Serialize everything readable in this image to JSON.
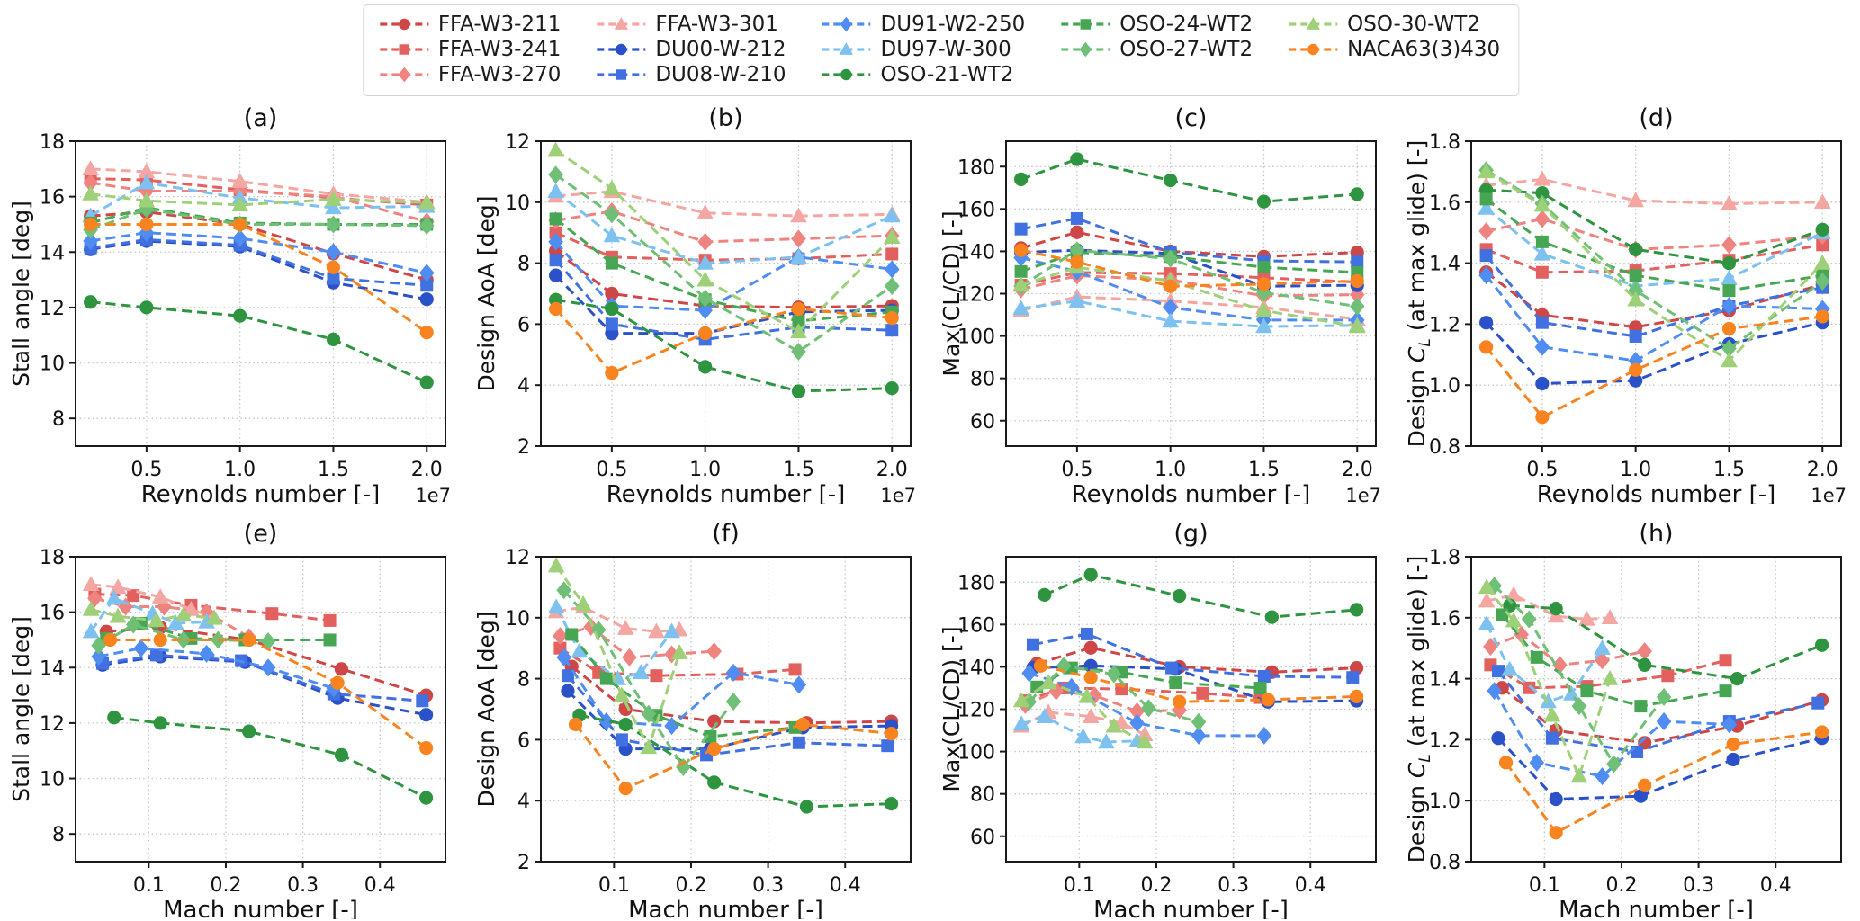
{
  "chart_data": {
    "type": "line",
    "x_re": [
      2000000,
      5000000,
      10000000,
      15000000,
      20000000
    ],
    "airfoils": [
      {
        "name": "FFA-W3-211",
        "color": "#cf4646",
        "marker": "circle",
        "mach": [
          0.045,
          0.115,
          0.23,
          0.35,
          0.46
        ],
        "stall": [
          15.3,
          15.45,
          15.0,
          13.95,
          13.0
        ],
        "aoa": [
          8.4,
          7.0,
          6.6,
          6.55,
          6.6
        ],
        "clcd": [
          141.5,
          149.0,
          140.0,
          137.5,
          139.5
        ],
        "cl": [
          1.37,
          1.23,
          1.19,
          1.245,
          1.33
        ]
      },
      {
        "name": "FFA-W3-241",
        "color": "#e2605d",
        "marker": "square",
        "mach": [
          0.03,
          0.08,
          0.155,
          0.26,
          0.335
        ],
        "stall": [
          16.65,
          16.6,
          16.25,
          15.95,
          15.7
        ],
        "aoa": [
          9.0,
          8.2,
          8.1,
          8.15,
          8.3
        ],
        "clcd": [
          124.0,
          130.0,
          129.5,
          127.5,
          125.5
        ],
        "cl": [
          1.445,
          1.37,
          1.375,
          1.41,
          1.46
        ]
      },
      {
        "name": "FFA-W3-270",
        "color": "#ee837f",
        "marker": "diamond",
        "mach": [
          0.03,
          0.07,
          0.12,
          0.175,
          0.23
        ],
        "stall": [
          16.5,
          16.2,
          16.2,
          16.0,
          15.1
        ],
        "aoa": [
          9.4,
          9.7,
          8.7,
          8.8,
          8.9
        ],
        "clcd": [
          122.0,
          128.5,
          126.5,
          119.0,
          119.5
        ],
        "cl": [
          1.505,
          1.545,
          1.445,
          1.46,
          1.49
        ]
      },
      {
        "name": "FFA-W3-301",
        "color": "#f4a6a3",
        "marker": "triangle",
        "mach": [
          0.025,
          0.06,
          0.115,
          0.155,
          0.185
        ],
        "stall": [
          17.0,
          16.9,
          16.55,
          16.1,
          15.8
        ],
        "aoa": [
          10.2,
          10.35,
          9.65,
          9.55,
          9.6
        ],
        "clcd": [
          112.0,
          118.5,
          116.5,
          113.5,
          108.0
        ],
        "cl": [
          1.655,
          1.675,
          1.605,
          1.595,
          1.6
        ]
      },
      {
        "name": "DU00-W-212",
        "color": "#2b51c8",
        "marker": "circle",
        "mach": [
          0.04,
          0.115,
          0.225,
          0.345,
          0.46
        ],
        "stall": [
          14.1,
          14.4,
          14.2,
          12.9,
          12.3
        ],
        "aoa": [
          7.6,
          5.7,
          5.7,
          6.4,
          6.45
        ],
        "clcd": [
          139.5,
          140.5,
          139.0,
          123.5,
          124.0
        ],
        "cl": [
          1.205,
          1.005,
          1.015,
          1.135,
          1.205
        ]
      },
      {
        "name": "DU08-W-210",
        "color": "#4170e0",
        "marker": "square",
        "mach": [
          0.04,
          0.11,
          0.22,
          0.34,
          0.455
        ],
        "stall": [
          14.15,
          14.45,
          14.25,
          13.05,
          12.8
        ],
        "aoa": [
          8.1,
          6.0,
          5.5,
          5.9,
          5.8
        ],
        "clcd": [
          150.5,
          155.5,
          139.5,
          135.5,
          135.0
        ],
        "cl": [
          1.425,
          1.205,
          1.16,
          1.26,
          1.32
        ]
      },
      {
        "name": "DU91-W2-250",
        "color": "#4f8df2",
        "marker": "diamond",
        "mach": [
          0.035,
          0.09,
          0.175,
          0.255,
          0.34
        ],
        "stall": [
          14.4,
          14.7,
          14.5,
          14.0,
          13.25
        ],
        "aoa": [
          8.7,
          6.6,
          6.45,
          8.2,
          7.8
        ],
        "clcd": [
          137.0,
          130.5,
          113.5,
          107.5,
          107.5
        ],
        "cl": [
          1.36,
          1.125,
          1.08,
          1.26,
          1.25
        ]
      },
      {
        "name": "DU97-W-300",
        "color": "#7cc1f0",
        "marker": "triangle",
        "mach": [
          0.025,
          0.055,
          0.105,
          0.135,
          0.175
        ],
        "stall": [
          15.3,
          16.5,
          15.95,
          15.6,
          15.65
        ],
        "aoa": [
          10.35,
          8.9,
          8.0,
          8.2,
          9.55
        ],
        "clcd": [
          113.0,
          116.5,
          107.0,
          104.5,
          105.0
        ],
        "cl": [
          1.58,
          1.43,
          1.325,
          1.35,
          1.5
        ]
      },
      {
        "name": "OSO-21-WT2",
        "color": "#2e9440",
        "marker": "circle",
        "mach": [
          0.055,
          0.115,
          0.23,
          0.35,
          0.46
        ],
        "stall": [
          12.2,
          12.0,
          11.7,
          10.85,
          9.3
        ],
        "aoa": [
          6.8,
          6.5,
          4.6,
          3.8,
          3.9
        ],
        "clcd": [
          174.0,
          183.5,
          173.5,
          163.5,
          167.0
        ],
        "cl": [
          1.64,
          1.63,
          1.445,
          1.4,
          1.51
        ]
      },
      {
        "name": "OSO-24-WT2",
        "color": "#46a653",
        "marker": "square",
        "mach": [
          0.045,
          0.09,
          0.155,
          0.225,
          0.335
        ],
        "stall": [
          15.05,
          15.6,
          15.05,
          15.0,
          15.0
        ],
        "aoa": [
          9.45,
          8.0,
          6.8,
          6.1,
          6.4
        ],
        "clcd": [
          130.5,
          139.5,
          137.5,
          132.5,
          130.0
        ],
        "cl": [
          1.61,
          1.47,
          1.36,
          1.31,
          1.36
        ]
      },
      {
        "name": "OSO-27-WT2",
        "color": "#6fc076",
        "marker": "diamond",
        "mach": [
          0.035,
          0.08,
          0.145,
          0.19,
          0.255
        ],
        "stall": [
          14.8,
          15.55,
          15.0,
          15.0,
          14.95
        ],
        "aoa": [
          10.9,
          9.6,
          6.85,
          5.1,
          7.25
        ],
        "clcd": [
          123.5,
          140.5,
          136.5,
          120.5,
          114.0
        ],
        "cl": [
          1.705,
          1.595,
          1.31,
          1.12,
          1.34
        ]
      },
      {
        "name": "OSO-30-WT2",
        "color": "#9ed077",
        "marker": "triangle",
        "mach": [
          0.025,
          0.06,
          0.11,
          0.145,
          0.185
        ],
        "stall": [
          16.1,
          15.85,
          15.7,
          15.9,
          15.78
        ],
        "aoa": [
          11.7,
          10.45,
          7.45,
          5.75,
          8.85
        ],
        "clcd": [
          124.0,
          132.5,
          126.0,
          112.0,
          104.5
        ],
        "cl": [
          1.7,
          1.59,
          1.28,
          1.08,
          1.4
        ]
      },
      {
        "name": "NACA63(3)430",
        "color": "#f9841f",
        "marker": "circle",
        "mach": [
          0.05,
          0.115,
          0.23,
          0.345,
          0.46
        ],
        "stall": [
          15.0,
          15.0,
          15.0,
          13.45,
          11.1
        ],
        "aoa": [
          6.5,
          4.4,
          5.7,
          6.5,
          6.2
        ],
        "clcd": [
          140.5,
          135.0,
          123.5,
          124.5,
          126.0
        ],
        "cl": [
          1.125,
          0.895,
          1.05,
          1.185,
          1.225
        ]
      }
    ],
    "subplots": [
      {
        "id": "a",
        "title": "(a)",
        "xkey": "re",
        "ykey": "stall",
        "xlabel": "Reynolds number [-]",
        "ylabel": "Stall angle [deg]",
        "xoffset": "1e7",
        "xlim": [
          1200000,
          21000000
        ],
        "ylim": [
          7,
          18
        ],
        "xticks": {
          "values": [
            5000000,
            10000000,
            15000000,
            20000000
          ],
          "labels": [
            "0.5",
            "1.0",
            "1.5",
            "2.0"
          ]
        },
        "yticks": {
          "values": [
            8,
            10,
            12,
            14,
            16,
            18
          ],
          "labels": [
            "8",
            "10",
            "12",
            "14",
            "16",
            "18"
          ]
        }
      },
      {
        "id": "b",
        "title": "(b)",
        "xkey": "re",
        "ykey": "aoa",
        "xlabel": "Reynolds number [-]",
        "ylabel": "Design AoA [deg]",
        "xoffset": "1e7",
        "xlim": [
          1200000,
          21000000
        ],
        "ylim": [
          2,
          12
        ],
        "xticks": {
          "values": [
            5000000,
            10000000,
            15000000,
            20000000
          ],
          "labels": [
            "0.5",
            "1.0",
            "1.5",
            "2.0"
          ]
        },
        "yticks": {
          "values": [
            2,
            4,
            6,
            8,
            10,
            12
          ],
          "labels": [
            "2",
            "4",
            "6",
            "8",
            "10",
            "12"
          ]
        }
      },
      {
        "id": "c",
        "title": "(c)",
        "xkey": "re",
        "ykey": "clcd",
        "xlabel": "Reynolds number [-]",
        "ylabel": "Max(CL/CD) [-]",
        "xoffset": "1e7",
        "xlim": [
          1200000,
          21000000
        ],
        "ylim": [
          48,
          192
        ],
        "xticks": {
          "values": [
            5000000,
            10000000,
            15000000,
            20000000
          ],
          "labels": [
            "0.5",
            "1.0",
            "1.5",
            "2.0"
          ]
        },
        "yticks": {
          "values": [
            60,
            80,
            100,
            120,
            140,
            160,
            180
          ],
          "labels": [
            "60",
            "80",
            "100",
            "120",
            "140",
            "160",
            "180"
          ]
        }
      },
      {
        "id": "d",
        "title": "(d)",
        "xkey": "re",
        "ykey": "cl",
        "xlabel": "Reynolds number [-]",
        "ylabel": "Design C_L (at max glide) [-]",
        "xoffset": "1e7",
        "xlim": [
          1200000,
          21000000
        ],
        "ylim": [
          0.8,
          1.8
        ],
        "xticks": {
          "values": [
            5000000,
            10000000,
            15000000,
            20000000
          ],
          "labels": [
            "0.5",
            "1.0",
            "1.5",
            "2.0"
          ]
        },
        "yticks": {
          "values": [
            0.8,
            1.0,
            1.2,
            1.4,
            1.6,
            1.8
          ],
          "labels": [
            "0.8",
            "1.0",
            "1.2",
            "1.4",
            "1.6",
            "1.8"
          ]
        }
      },
      {
        "id": "e",
        "title": "(e)",
        "xkey": "mach",
        "ykey": "stall",
        "xlabel": "Mach number [-]",
        "ylabel": "Stall angle [deg]",
        "xoffset": null,
        "xlim": [
          0.005,
          0.485
        ],
        "ylim": [
          7,
          18
        ],
        "xticks": {
          "values": [
            0.1,
            0.2,
            0.3,
            0.4
          ],
          "labels": [
            "0.1",
            "0.2",
            "0.3",
            "0.4"
          ]
        },
        "yticks": {
          "values": [
            8,
            10,
            12,
            14,
            16,
            18
          ],
          "labels": [
            "8",
            "10",
            "12",
            "14",
            "16",
            "18"
          ]
        }
      },
      {
        "id": "f",
        "title": "(f)",
        "xkey": "mach",
        "ykey": "aoa",
        "xlabel": "Mach number [-]",
        "ylabel": "Design AoA [deg]",
        "xoffset": null,
        "xlim": [
          0.005,
          0.485
        ],
        "ylim": [
          2,
          12
        ],
        "xticks": {
          "values": [
            0.1,
            0.2,
            0.3,
            0.4
          ],
          "labels": [
            "0.1",
            "0.2",
            "0.3",
            "0.4"
          ]
        },
        "yticks": {
          "values": [
            2,
            4,
            6,
            8,
            10,
            12
          ],
          "labels": [
            "2",
            "4",
            "6",
            "8",
            "10",
            "12"
          ]
        }
      },
      {
        "id": "g",
        "title": "(g)",
        "xkey": "mach",
        "ykey": "clcd",
        "xlabel": "Mach number [-]",
        "ylabel": "Max(CL/CD) [-]",
        "xoffset": null,
        "xlim": [
          0.005,
          0.485
        ],
        "ylim": [
          48,
          192
        ],
        "xticks": {
          "values": [
            0.1,
            0.2,
            0.3,
            0.4
          ],
          "labels": [
            "0.1",
            "0.2",
            "0.3",
            "0.4"
          ]
        },
        "yticks": {
          "values": [
            60,
            80,
            100,
            120,
            140,
            160,
            180
          ],
          "labels": [
            "60",
            "80",
            "100",
            "120",
            "140",
            "160",
            "180"
          ]
        }
      },
      {
        "id": "h",
        "title": "(h)",
        "xkey": "mach",
        "ykey": "cl",
        "xlabel": "Mach number [-]",
        "ylabel": "Design C_L (at max glide) [-]",
        "xoffset": null,
        "xlim": [
          0.005,
          0.485
        ],
        "ylim": [
          0.8,
          1.8
        ],
        "xticks": {
          "values": [
            0.1,
            0.2,
            0.3,
            0.4
          ],
          "labels": [
            "0.1",
            "0.2",
            "0.3",
            "0.4"
          ]
        },
        "yticks": {
          "values": [
            0.8,
            1.0,
            1.2,
            1.4,
            1.6,
            1.8
          ],
          "labels": [
            "0.8",
            "1.0",
            "1.2",
            "1.4",
            "1.6",
            "1.8"
          ]
        }
      }
    ]
  }
}
